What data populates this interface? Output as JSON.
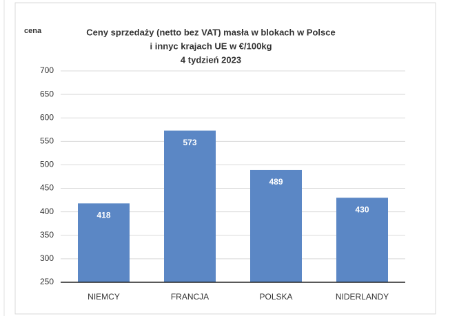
{
  "chart_data": {
    "type": "bar",
    "title": [
      "Ceny sprzedaży (netto bez VAT) masła w blokach w Polsce",
      "i  innyc krajach UE w €/100kg",
      "4 tydzień 2023"
    ],
    "y_label": "cena",
    "categories": [
      "NIEMCY",
      "FRANCJA",
      "POLSKA",
      "NIDERLANDY"
    ],
    "values": [
      418,
      573,
      489,
      430
    ],
    "color": "#5b87c5",
    "ylim": [
      250,
      700
    ],
    "yticks": [
      250,
      300,
      350,
      400,
      450,
      500,
      550,
      600,
      650,
      700
    ],
    "grid": true
  }
}
